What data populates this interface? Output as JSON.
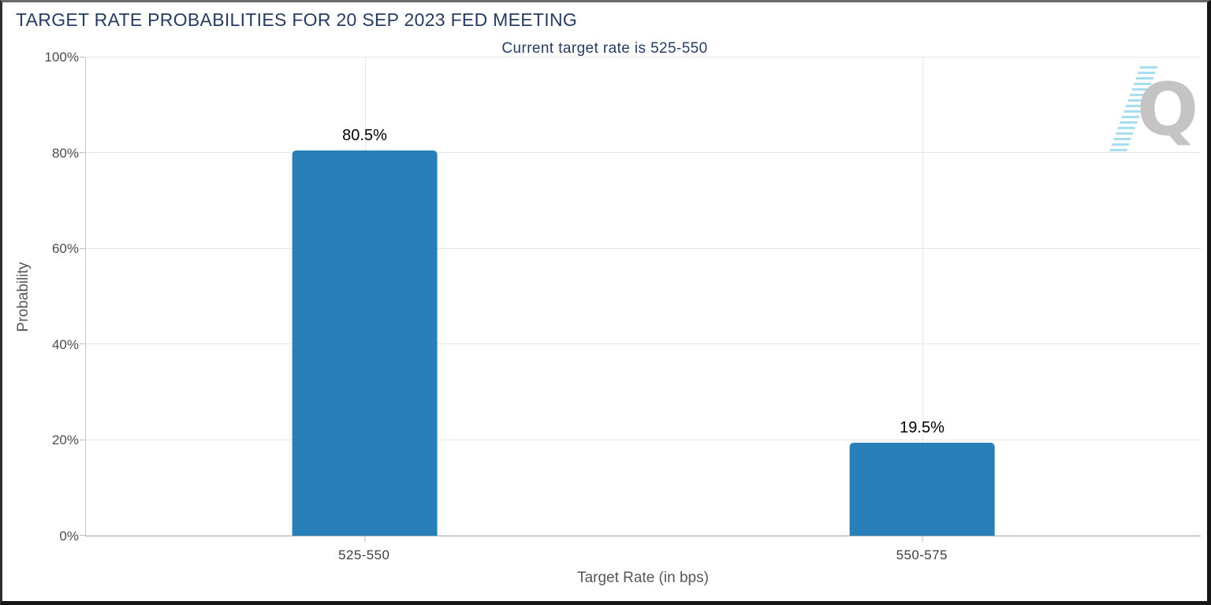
{
  "chart_data": {
    "type": "bar",
    "title": "TARGET RATE PROBABILITIES FOR 20 SEP 2023 FED MEETING",
    "subtitle": "Current target rate is 525-550",
    "categories": [
      "525-550",
      "550-575"
    ],
    "values": [
      80.5,
      19.5
    ],
    "value_labels": [
      "80.5%",
      "19.5%"
    ],
    "xlabel": "Target Rate (in bps)",
    "ylabel": "Probability",
    "ylim": [
      0,
      100
    ],
    "yticks": [
      0,
      20,
      40,
      60,
      80,
      100
    ],
    "ytick_labels": [
      "0%",
      "20%",
      "40%",
      "60%",
      "80%",
      "100%"
    ],
    "grid": true,
    "legend": false,
    "bar_color": "#2980b8"
  },
  "colors": {
    "title_text": "#263c61",
    "axis_text": "#575757",
    "tick_text": "#4c4c4c",
    "gridline": "#e6e6e6",
    "bar": "#2980b8",
    "logo_stripes": "#a8dcef",
    "logo_letter": "#c4c4c4"
  },
  "logo": {
    "letter": "Q"
  }
}
